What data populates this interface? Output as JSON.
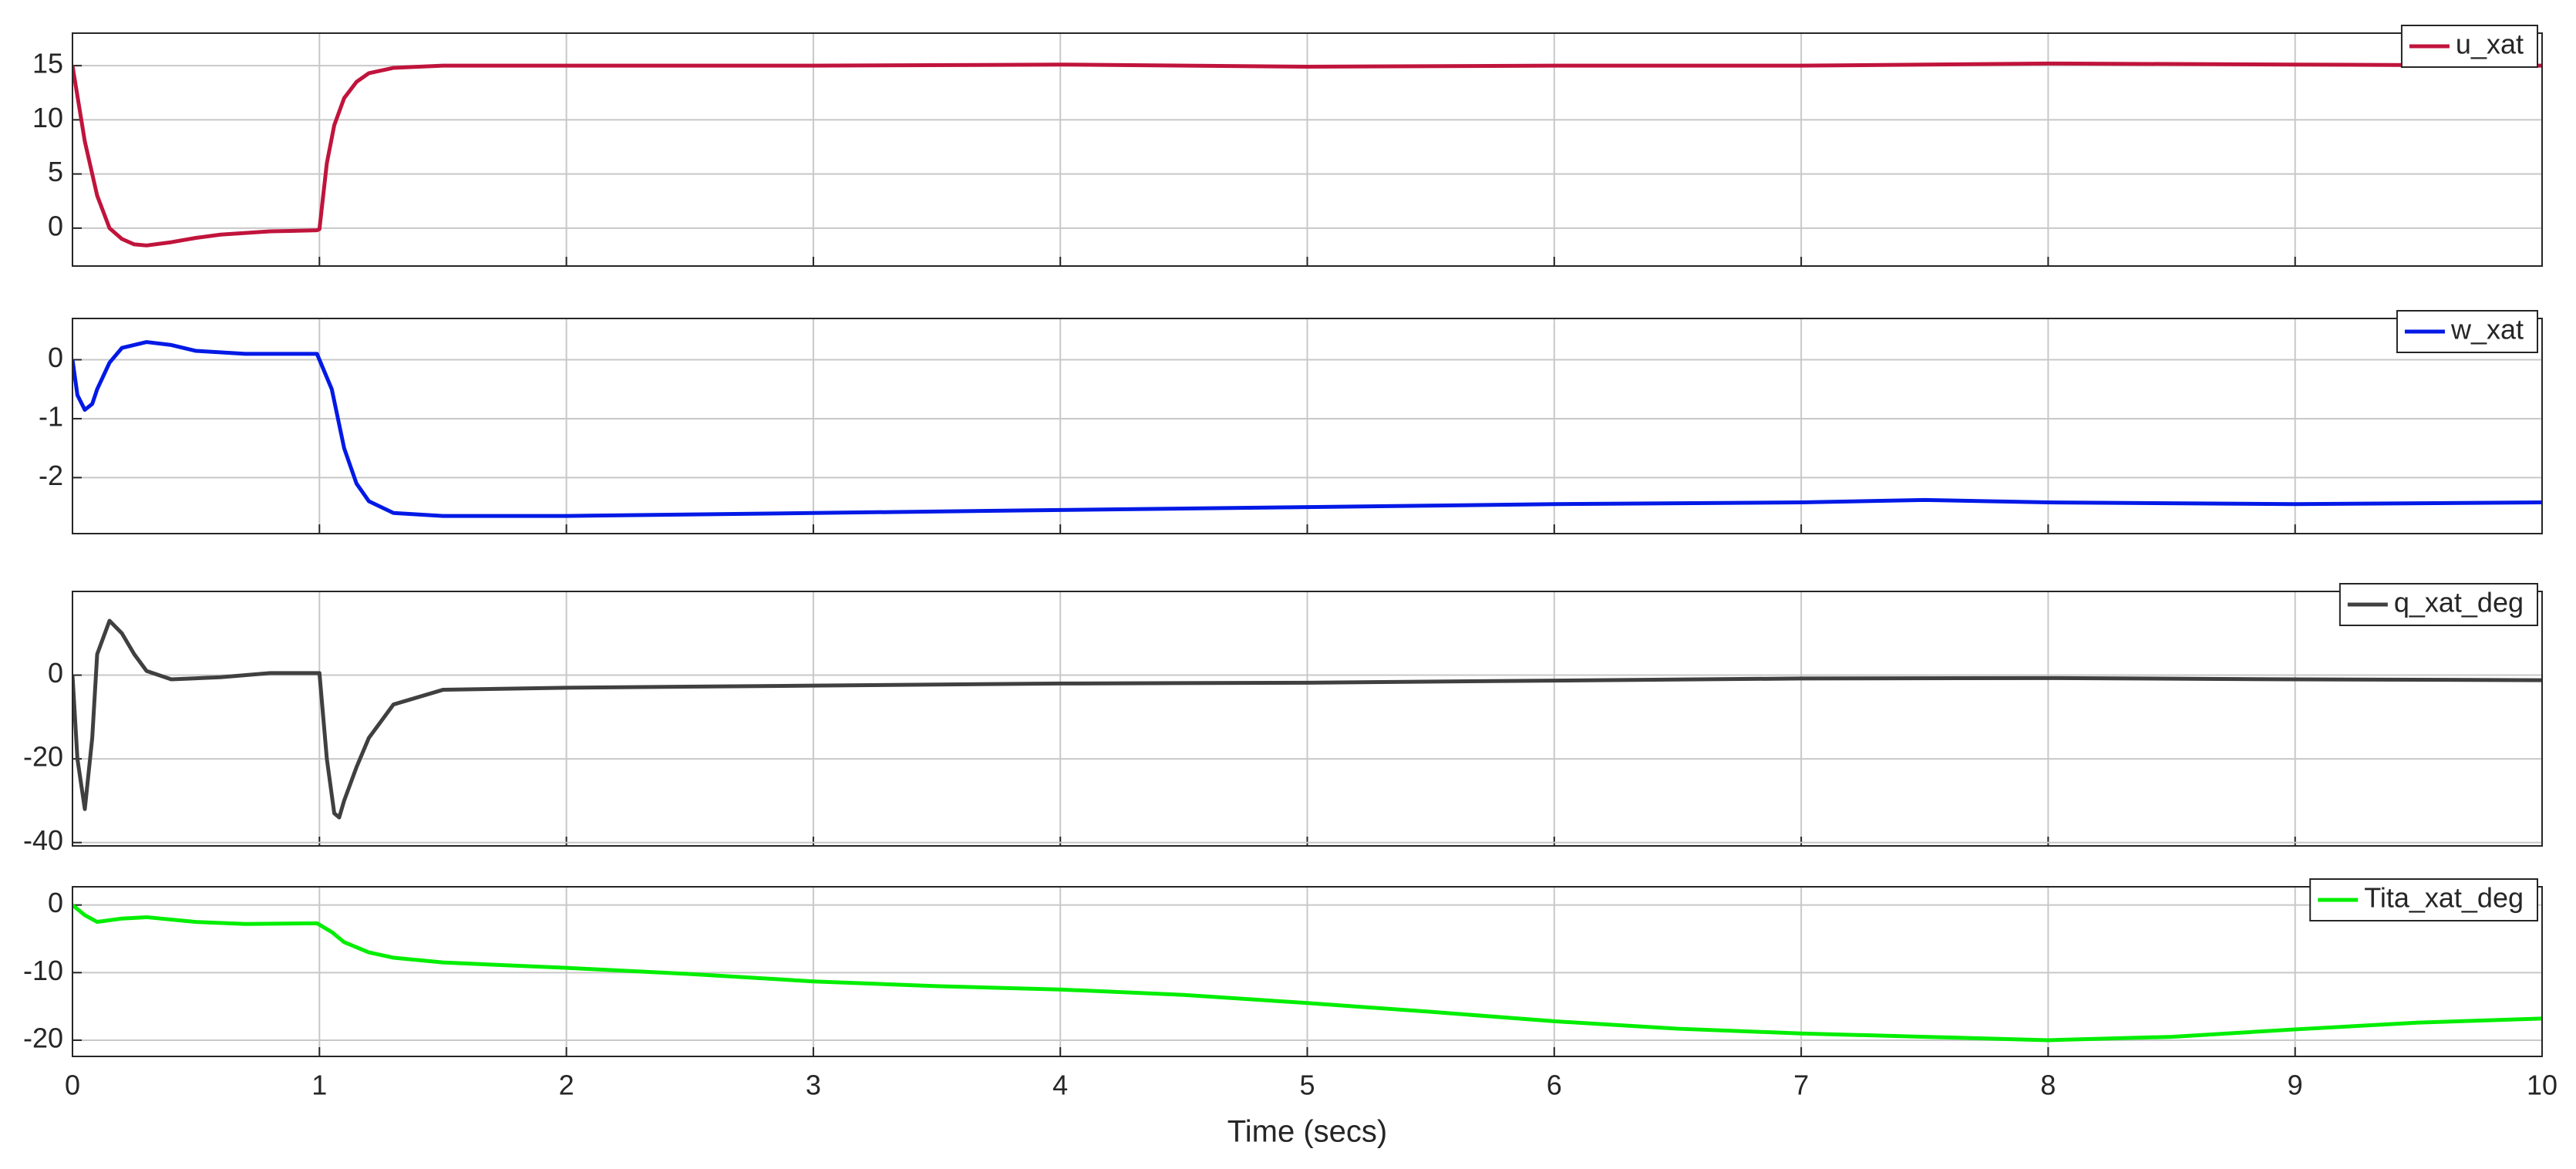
{
  "chart_data": [
    {
      "type": "line",
      "x": [
        0,
        0.05,
        0.1,
        0.15,
        0.2,
        0.25,
        0.3,
        0.4,
        0.5,
        0.6,
        0.8,
        0.99,
        1.0,
        1.03,
        1.06,
        1.1,
        1.15,
        1.2,
        1.3,
        1.5,
        2,
        3,
        4,
        5,
        6,
        7,
        8,
        9,
        10
      ],
      "series": [
        {
          "name": "u_xat",
          "color": "#c0143c",
          "values": [
            15,
            8,
            3,
            0,
            -1,
            -1.5,
            -1.6,
            -1.3,
            -0.9,
            -0.6,
            -0.3,
            -0.2,
            -0.1,
            6,
            9.5,
            12,
            13.5,
            14.3,
            14.8,
            15,
            15,
            15,
            15.1,
            14.9,
            15,
            15,
            15.2,
            15.1,
            15
          ]
        }
      ],
      "xlim": [
        0,
        10
      ],
      "xticks": [
        0,
        1,
        2,
        3,
        4,
        5,
        6,
        7,
        8,
        9,
        10
      ],
      "ylim": [
        -3.5,
        18
      ],
      "yticks": [
        0,
        5,
        10,
        15
      ],
      "grid": true,
      "legend": "upper right"
    },
    {
      "type": "line",
      "x": [
        0,
        0.02,
        0.05,
        0.08,
        0.1,
        0.15,
        0.2,
        0.3,
        0.4,
        0.5,
        0.7,
        0.99,
        1.05,
        1.1,
        1.15,
        1.2,
        1.3,
        1.5,
        2,
        3,
        4,
        5,
        6,
        7,
        7.5,
        8,
        9,
        10
      ],
      "series": [
        {
          "name": "w_xat",
          "color": "#0019e6",
          "values": [
            0,
            -0.6,
            -0.85,
            -0.75,
            -0.5,
            -0.05,
            0.2,
            0.3,
            0.25,
            0.15,
            0.1,
            0.1,
            -0.5,
            -1.5,
            -2.1,
            -2.4,
            -2.6,
            -2.65,
            -2.65,
            -2.6,
            -2.55,
            -2.5,
            -2.45,
            -2.42,
            -2.38,
            -2.42,
            -2.45,
            -2.42
          ]
        }
      ],
      "xlim": [
        0,
        10
      ],
      "xticks": [
        0,
        1,
        2,
        3,
        4,
        5,
        6,
        7,
        8,
        9,
        10
      ],
      "ylim": [
        -2.95,
        0.7
      ],
      "yticks": [
        -2,
        -1,
        0
      ],
      "grid": true,
      "legend": "upper right"
    },
    {
      "type": "line",
      "x": [
        0,
        0.02,
        0.05,
        0.08,
        0.1,
        0.15,
        0.2,
        0.25,
        0.3,
        0.4,
        0.6,
        0.8,
        1.0,
        1.03,
        1.06,
        1.08,
        1.1,
        1.15,
        1.2,
        1.3,
        1.5,
        2,
        3,
        4,
        5,
        6,
        7,
        8,
        9,
        10
      ],
      "series": [
        {
          "name": "q_xat_deg",
          "color": "#404040",
          "values": [
            0,
            -20,
            -32,
            -15,
            5,
            13,
            10,
            5,
            1,
            -1,
            -0.5,
            0.5,
            0.5,
            -20,
            -33,
            -34,
            -30,
            -22,
            -15,
            -7,
            -3.5,
            -3,
            -2.5,
            -2,
            -1.8,
            -1.3,
            -0.8,
            -0.7,
            -1.0,
            -1.2
          ]
        }
      ],
      "xlim": [
        0,
        10
      ],
      "xticks": [
        0,
        1,
        2,
        3,
        4,
        5,
        6,
        7,
        8,
        9,
        10
      ],
      "ylim": [
        -40.8,
        20
      ],
      "yticks": [
        -40,
        -20,
        0
      ],
      "grid": true,
      "legend": "upper right"
    },
    {
      "type": "line",
      "x": [
        0,
        0.05,
        0.1,
        0.2,
        0.3,
        0.5,
        0.7,
        0.99,
        1.05,
        1.1,
        1.2,
        1.3,
        1.5,
        2,
        2.5,
        3,
        3.5,
        4,
        4.5,
        5,
        5.5,
        6,
        6.5,
        7,
        7.5,
        8,
        8.5,
        9,
        9.5,
        10
      ],
      "series": [
        {
          "name": "Tita_xat_deg",
          "color": "#00ee00",
          "values": [
            0,
            -1.5,
            -2.5,
            -2,
            -1.8,
            -2.5,
            -2.8,
            -2.7,
            -4,
            -5.5,
            -7,
            -7.8,
            -8.5,
            -9.3,
            -10.2,
            -11.3,
            -12,
            -12.5,
            -13.3,
            -14.5,
            -15.8,
            -17.2,
            -18.3,
            -19,
            -19.5,
            -20,
            -19.5,
            -18.4,
            -17.4,
            -16.8
          ]
        }
      ],
      "xlim": [
        0,
        10
      ],
      "xticks": [
        0,
        1,
        2,
        3,
        4,
        5,
        6,
        7,
        8,
        9,
        10
      ],
      "ylim": [
        -22.4,
        2.7
      ],
      "yticks": [
        -20,
        -10,
        0
      ],
      "grid": true,
      "legend": "upper right",
      "xlabel": "Time (secs)"
    }
  ]
}
